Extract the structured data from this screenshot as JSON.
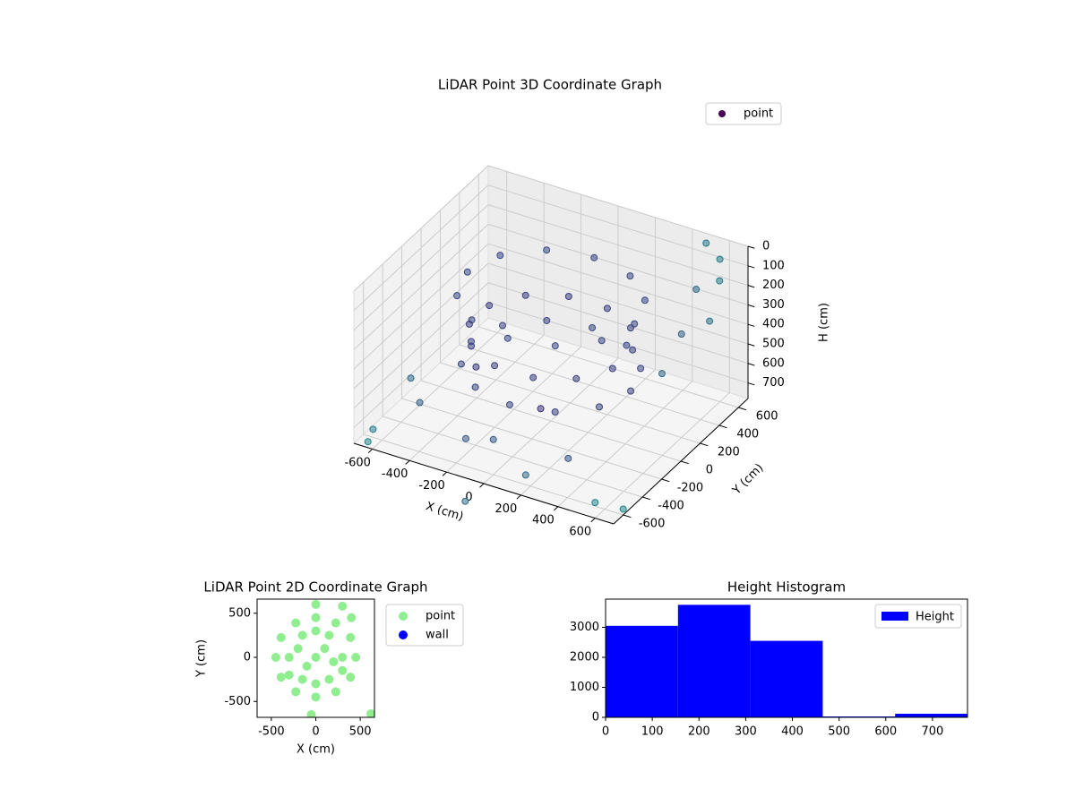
{
  "chart_data": [
    {
      "type": "scatter3d",
      "title": "LiDAR Point 3D Coordinate Graph",
      "xlabel": "X (cm)",
      "ylabel": "Y (cm)",
      "zlabel": "H (cm)",
      "xlim": [
        -700,
        700
      ],
      "ylim": [
        -700,
        700
      ],
      "zlim": [
        0,
        780
      ],
      "zaxis_inverted": true,
      "xticks": [
        -600,
        -400,
        -200,
        0,
        200,
        400,
        600
      ],
      "yticks": [
        -600,
        -400,
        -200,
        0,
        200,
        400,
        600
      ],
      "zticks": [
        0,
        100,
        200,
        300,
        400,
        500,
        600,
        700
      ],
      "colormap": "viridis",
      "color_by": "distance",
      "clim": [
        0,
        2000
      ],
      "grid": true,
      "legend": "upper right",
      "series": [
        {
          "name": "point",
          "color": "#440154",
          "x": [
            450,
            390,
            225,
            0,
            -225,
            -390,
            -450,
            -390,
            -225,
            0,
            225,
            390,
            386,
            283,
            104,
            -104,
            -283,
            -386,
            -386,
            -283,
            -104,
            104,
            283,
            386,
            430,
            372,
            215,
            0,
            -215,
            -372,
            -430,
            -372,
            -215,
            0,
            215,
            372,
            600,
            650,
            500,
            700,
            -600,
            -500,
            -200,
            0,
            200,
            300,
            600,
            700,
            -650,
            -700,
            -100,
            650,
            600,
            550,
            -300,
            100
          ],
          "y": [
            0,
            225,
            390,
            450,
            390,
            225,
            0,
            -225,
            -390,
            -450,
            -390,
            -225,
            104,
            283,
            386,
            386,
            283,
            104,
            -104,
            -283,
            -386,
            -386,
            -283,
            -104,
            0,
            215,
            372,
            430,
            372,
            215,
            0,
            -215,
            -372,
            -430,
            -372,
            -215,
            600,
            500,
            650,
            300,
            -300,
            -400,
            -500,
            -600,
            -650,
            -400,
            -700,
            -600,
            -650,
            -500,
            -700,
            -100,
            200,
            450,
            -200,
            -300
          ],
          "z": [
            150,
            150,
            150,
            150,
            150,
            150,
            150,
            150,
            150,
            150,
            150,
            150,
            350,
            350,
            350,
            350,
            350,
            350,
            350,
            350,
            350,
            350,
            350,
            350,
            500,
            500,
            500,
            500,
            500,
            500,
            500,
            500,
            500,
            500,
            500,
            500,
            50,
            100,
            20,
            200,
            600,
            650,
            700,
            600,
            700,
            700,
            700,
            750,
            780,
            800,
            900,
            300,
            250,
            150,
            500,
            550
          ]
        }
      ]
    },
    {
      "type": "scatter",
      "title": "LiDAR Point 2D Coordinate Graph",
      "xlabel": "X (cm)",
      "ylabel": "Y (cm)",
      "xlim": [
        -660,
        660
      ],
      "ylim": [
        -680,
        660
      ],
      "xticks": [
        -500,
        0,
        500
      ],
      "yticks": [
        -500,
        0,
        500
      ],
      "legend": "outside right",
      "series": [
        {
          "name": "point",
          "color": "#90ee90",
          "x": [
            450,
            390,
            225,
            0,
            -225,
            -390,
            -450,
            -390,
            -225,
            0,
            225,
            390,
            300,
            150,
            0,
            -150,
            -300,
            -300,
            -150,
            0,
            150,
            300,
            0,
            100,
            -100,
            200,
            -200,
            0,
            400,
            300,
            620,
            -50
          ],
          "y": [
            0,
            225,
            390,
            450,
            390,
            225,
            0,
            -225,
            -390,
            -450,
            -390,
            -225,
            0,
            250,
            300,
            250,
            0,
            -200,
            -250,
            -300,
            -250,
            -150,
            0,
            100,
            -100,
            -50,
            100,
            600,
            450,
            580,
            -640,
            -650
          ]
        },
        {
          "name": "wall",
          "color": "#0000ff",
          "x": [],
          "y": []
        }
      ]
    },
    {
      "type": "histogram",
      "title": "Height Histogram",
      "color": "#0000ff",
      "legend": "upper right",
      "series": [
        {
          "name": "Height",
          "color": "#0000ff"
        }
      ],
      "bins": [
        0,
        155,
        310,
        465,
        620,
        775
      ],
      "counts": [
        3050,
        3750,
        2550,
        30,
        120
      ],
      "xlim": [
        0,
        775
      ],
      "ylim": [
        0,
        3940
      ],
      "xticks": [
        0,
        100,
        200,
        300,
        400,
        500,
        600,
        700
      ],
      "yticks": [
        0,
        1000,
        2000,
        3000
      ]
    }
  ]
}
